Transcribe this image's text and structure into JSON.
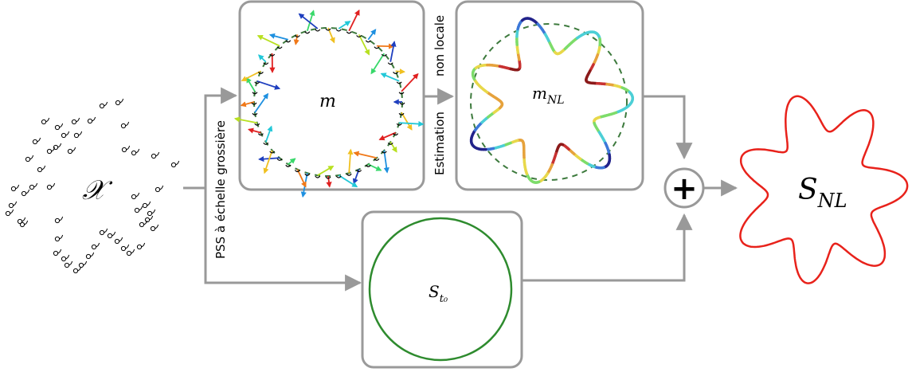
{
  "diagram": {
    "input_symbol": "𝒳",
    "coarse_label": "PSS à échelle grossière",
    "estimation_label_1": "non locale",
    "estimation_label_2": "Estimation",
    "m_label": "m",
    "mnl_label_main": "m",
    "mnl_label_sub": "NL",
    "st0_label_main": "S",
    "st0_label_sub": "t₀",
    "snl_label_main": "S",
    "snl_label_sub": "NL",
    "plus_symbol": "+"
  },
  "colors": {
    "box_border": "#9a9a9a",
    "arrow": "#999999",
    "dashed_circle": "#3d7a3d",
    "st0_circle": "#2e8b2e",
    "snl_shape": "#e8221b",
    "vector_palette": [
      "#1f3fbf",
      "#1e90e0",
      "#22c8d8",
      "#38d86a",
      "#b8e020",
      "#f0c020",
      "#f07818",
      "#e02020"
    ]
  }
}
